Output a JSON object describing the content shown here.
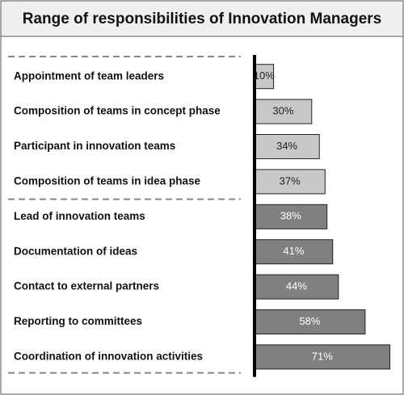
{
  "chart_data": {
    "type": "bar",
    "orientation": "horizontal",
    "title": "Range of responsibilities of Innovation Managers",
    "categories": [
      "Appointment of team leaders",
      "Composition of teams in concept phase",
      "Participant in innovation teams",
      "Composition of teams in idea phase",
      "Lead of innovation teams",
      "Documentation of ideas",
      "Contact to external partners",
      "Reporting to committees",
      "Coordination of innovation activities"
    ],
    "values": [
      10,
      30,
      34,
      37,
      38,
      41,
      44,
      58,
      71
    ],
    "value_labels": [
      "10%",
      "30%",
      "34%",
      "37%",
      "38%",
      "41%",
      "44%",
      "58%",
      "71%"
    ],
    "colors": [
      "#c8c8c8",
      "#c8c8c8",
      "#c8c8c8",
      "#c8c8c8",
      "#808080",
      "#808080",
      "#808080",
      "#808080",
      "#808080"
    ]
  }
}
